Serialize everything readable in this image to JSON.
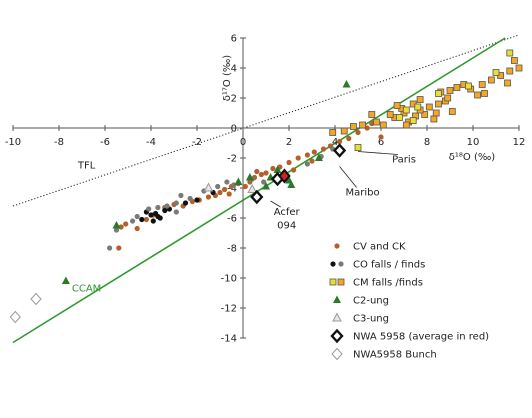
{
  "chart_data": {
    "type": "scatter",
    "title": "",
    "xlabel": "δ¹⁸O (‰)",
    "ylabel": "δ¹⁷O (‰)",
    "xlim": [
      -10,
      12
    ],
    "ylim": [
      -14,
      6
    ],
    "x_ticks": [
      -10,
      -8,
      -6,
      -4,
      -2,
      0,
      2,
      4,
      6,
      8,
      10,
      12
    ],
    "y_ticks": [
      -14,
      -12,
      -10,
      -8,
      -6,
      -4,
      -2,
      0,
      2,
      4,
      6
    ],
    "grid": false,
    "legend_position": "bottom-right",
    "lines": [
      {
        "name": "TFL",
        "style": "dotted",
        "color": "#222222",
        "points": [
          [
            -10,
            -5.2
          ],
          [
            12,
            6.2
          ]
        ]
      },
      {
        "name": "CCAM",
        "style": "solid",
        "color": "#2e9a2e",
        "points": [
          [
            -10,
            -14.3
          ],
          [
            11.4,
            6
          ]
        ]
      }
    ],
    "annotations": [
      {
        "text": "TFL",
        "x": -6.8,
        "y": -2.7
      },
      {
        "text": "CCAM",
        "x": -6.8,
        "y": -10.9
      },
      {
        "text": "Paris",
        "x": 7.0,
        "y": -2.3,
        "target": [
          5.0,
          -1.3
        ]
      },
      {
        "text": "Maribo",
        "x": 5.2,
        "y": -4.5,
        "target": [
          4.2,
          -2.3
        ]
      },
      {
        "text": "Acfer",
        "x": 1.9,
        "y": -5.8,
        "target": [
          1.2,
          -4.6
        ]
      },
      {
        "text": "094",
        "x": 1.9,
        "y": -6.7,
        "target": null
      }
    ],
    "series": [
      {
        "name": "CV and CK",
        "marker": "circle",
        "color": "#b5602a",
        "points": [
          [
            -5.4,
            -8.0
          ],
          [
            -5.3,
            -6.6
          ],
          [
            -4.2,
            -6.1
          ],
          [
            -3.9,
            -5.8
          ],
          [
            -3.4,
            -5.3
          ],
          [
            -3.0,
            -5.1
          ],
          [
            -2.6,
            -5.2
          ],
          [
            -2.2,
            -4.9
          ],
          [
            -1.9,
            -4.8
          ],
          [
            -1.5,
            -4.6
          ],
          [
            -1.2,
            -4.5
          ],
          [
            -1.0,
            -4.3
          ],
          [
            -0.8,
            -4.1
          ],
          [
            -0.5,
            -3.9
          ],
          [
            -0.2,
            -3.7
          ],
          [
            0.1,
            -3.9
          ],
          [
            0.3,
            -3.6
          ],
          [
            0.5,
            -3.3
          ],
          [
            0.8,
            -3.1
          ],
          [
            1.0,
            -3.0
          ],
          [
            1.3,
            -2.7
          ],
          [
            1.6,
            -2.6
          ],
          [
            2.0,
            -2.3
          ],
          [
            2.4,
            -2.0
          ],
          [
            2.8,
            -1.8
          ],
          [
            3.1,
            -1.6
          ],
          [
            3.5,
            -1.4
          ],
          [
            3.8,
            -1.2
          ],
          [
            4.2,
            -0.9
          ],
          [
            4.6,
            -0.7
          ],
          [
            5.0,
            -0.3
          ],
          [
            5.4,
            0.0
          ],
          [
            5.6,
            0.3
          ],
          [
            6.0,
            -0.6
          ],
          [
            -5.1,
            -6.4
          ],
          [
            -4.6,
            -6.7
          ],
          [
            1.4,
            -3.4
          ],
          [
            2.2,
            -2.8
          ],
          [
            -0.6,
            -4.4
          ],
          [
            0.6,
            -2.9
          ],
          [
            3.0,
            -2.2
          ],
          [
            1.9,
            -3.2
          ]
        ]
      },
      {
        "name": "CO falls / finds",
        "marker": "circle",
        "color": "#111111",
        "points": [
          [
            -4.2,
            -5.6
          ],
          [
            -4.0,
            -5.8
          ],
          [
            -3.8,
            -5.7
          ],
          [
            -3.6,
            -6.0
          ],
          [
            -3.9,
            -6.2
          ],
          [
            -3.4,
            -5.5
          ],
          [
            -3.2,
            -5.4
          ],
          [
            -3.7,
            -5.9
          ],
          [
            -2.5,
            -5.0
          ],
          [
            -2.0,
            -4.8
          ],
          [
            -1.3,
            -4.3
          ],
          [
            -4.4,
            -6.1
          ]
        ]
      },
      {
        "name": "CO falls / finds (finds)",
        "marker": "circle",
        "color": "#7a7a7a",
        "points": [
          [
            -5.8,
            -8.0
          ],
          [
            -5.5,
            -6.8
          ],
          [
            -4.8,
            -6.2
          ],
          [
            -4.6,
            -5.9
          ],
          [
            -4.1,
            -5.4
          ],
          [
            -3.7,
            -5.3
          ],
          [
            -3.3,
            -5.2
          ],
          [
            -2.9,
            -5.0
          ],
          [
            -2.7,
            -4.5
          ],
          [
            -2.3,
            -4.7
          ],
          [
            -1.7,
            -4.2
          ],
          [
            -1.1,
            -3.9
          ],
          [
            -0.7,
            -3.6
          ],
          [
            -0.4,
            -3.8
          ],
          [
            0.4,
            -3.4
          ],
          [
            0.9,
            -3.6
          ],
          [
            1.6,
            -3.3
          ],
          [
            2.8,
            -2.4
          ],
          [
            3.4,
            -1.9
          ],
          [
            3.9,
            -1.4
          ],
          [
            -2.9,
            -5.6
          ]
        ]
      },
      {
        "name": "CM falls /finds",
        "marker": "square",
        "color": "#f5a623",
        "points": [
          [
            6.6,
            0.7
          ],
          [
            7.0,
            1.0
          ],
          [
            7.2,
            0.4
          ],
          [
            7.4,
            1.6
          ],
          [
            7.7,
            1.9
          ],
          [
            7.9,
            0.9
          ],
          [
            8.1,
            1.4
          ],
          [
            8.3,
            0.6
          ],
          [
            8.6,
            2.4
          ],
          [
            8.8,
            1.8
          ],
          [
            9.0,
            2.5
          ],
          [
            9.3,
            2.7
          ],
          [
            9.6,
            2.9
          ],
          [
            9.9,
            2.6
          ],
          [
            10.2,
            2.2
          ],
          [
            10.5,
            2.3
          ],
          [
            10.8,
            3.2
          ],
          [
            11.2,
            3.5
          ],
          [
            11.6,
            3.8
          ],
          [
            11.8,
            4.5
          ],
          [
            12.0,
            4.0
          ],
          [
            11.5,
            3.0
          ],
          [
            7.5,
            0.8
          ],
          [
            8.4,
            1.0
          ],
          [
            6.9,
            1.3
          ],
          [
            6.4,
            0.9
          ],
          [
            5.8,
            0.4
          ],
          [
            5.2,
            0.2
          ],
          [
            4.8,
            0.1
          ],
          [
            4.4,
            -0.2
          ],
          [
            3.9,
            -0.3
          ],
          [
            7.1,
            0.2
          ],
          [
            8.5,
            1.6
          ],
          [
            9.1,
            1.1
          ],
          [
            6.7,
            1.5
          ],
          [
            7.7,
            1.2
          ],
          [
            8.9,
            2.0
          ],
          [
            10.4,
            2.9
          ],
          [
            5.6,
            0.9
          ],
          [
            6.1,
            0.2
          ]
        ]
      },
      {
        "name": "CM falls /finds (falls)",
        "marker": "square",
        "color": "#e8e030",
        "points": [
          [
            5.0,
            -1.3
          ],
          [
            8.5,
            2.3
          ],
          [
            9.8,
            2.8
          ],
          [
            11.0,
            3.7
          ],
          [
            11.6,
            5.0
          ],
          [
            7.6,
            1.4
          ],
          [
            7.1,
            1.2
          ],
          [
            6.8,
            0.7
          ],
          [
            7.4,
            0.5
          ]
        ]
      },
      {
        "name": "C2-ung",
        "marker": "triangle",
        "color": "#2a7a2a",
        "points": [
          [
            -7.7,
            -10.2
          ],
          [
            -5.5,
            -6.5
          ],
          [
            -0.2,
            -3.6
          ],
          [
            0.3,
            -3.3
          ],
          [
            1.0,
            -3.9
          ],
          [
            1.2,
            -3.3
          ],
          [
            1.5,
            -2.8
          ],
          [
            2.0,
            -3.5
          ],
          [
            2.1,
            -3.8
          ],
          [
            3.3,
            -2.0
          ],
          [
            4.5,
            2.9
          ]
        ]
      },
      {
        "name": "C3-ung",
        "marker": "triangle-open",
        "color": "#999999",
        "points": [
          [
            -1.5,
            -4.0
          ],
          [
            0.4,
            -4.1
          ]
        ]
      },
      {
        "name": "NWA 5958 (average in red)",
        "marker": "diamond-open",
        "color": "#111111",
        "points": [
          [
            0.6,
            -4.6
          ],
          [
            1.5,
            -3.4
          ],
          [
            4.2,
            -1.5
          ]
        ]
      },
      {
        "name": "NWA 5958 (average)",
        "marker": "diamond",
        "color": "#cc2222",
        "points": [
          [
            1.8,
            -3.2
          ]
        ]
      },
      {
        "name": "NWA5958 Bunch",
        "marker": "diamond-open",
        "color": "#999999",
        "points": [
          [
            -9.0,
            -11.4
          ],
          [
            -9.9,
            -12.6
          ]
        ]
      }
    ],
    "legend": [
      {
        "label": "CV and CK",
        "marker": "circle",
        "color": "#b5602a",
        "color2": ""
      },
      {
        "label": "CO falls / finds",
        "marker": "circle-pair",
        "color": "#111111",
        "color2": "#7a7a7a"
      },
      {
        "label": "CM falls /finds",
        "marker": "square-pair",
        "color": "#e8e030",
        "color2": "#f5a623"
      },
      {
        "label": "C2-ung",
        "marker": "triangle",
        "color": "#2a7a2a",
        "color2": ""
      },
      {
        "label": "C3-ung",
        "marker": "triangle-open",
        "color": "#999999",
        "color2": ""
      },
      {
        "label": "NWA 5958 (average in red)",
        "marker": "diamond-open",
        "color": "#111111",
        "color2": ""
      },
      {
        "label": "NWA5958 Bunch",
        "marker": "diamond-open",
        "color": "#999999",
        "color2": ""
      }
    ]
  }
}
